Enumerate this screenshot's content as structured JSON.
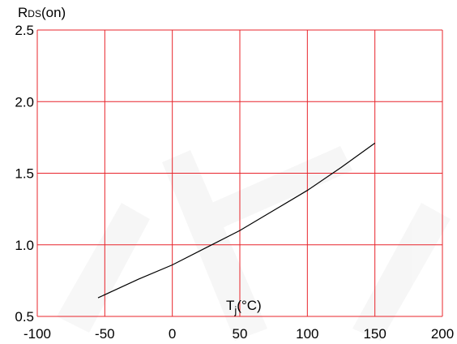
{
  "chart_data": {
    "type": "line",
    "title": "",
    "ylabel_main": "R",
    "ylabel_sub": "DS",
    "ylabel_suffix": "(on)",
    "xlabel_main": "T",
    "xlabel_sub": "j",
    "xlabel_suffix": "(°C)",
    "xlim": [
      -100,
      200
    ],
    "ylim": [
      0.5,
      2.5
    ],
    "xticks": [
      -100,
      -50,
      0,
      50,
      100,
      150,
      200
    ],
    "yticks": [
      0.5,
      1.0,
      1.5,
      2.0,
      2.5
    ],
    "ytick_labels": [
      "0.5",
      "1.0",
      "1.5",
      "2.0",
      "2.5"
    ],
    "grid": true,
    "grid_color": "#e8242b",
    "line_color": "#000000",
    "series": [
      {
        "x": [
          -55,
          -25,
          0,
          25,
          50,
          75,
          100,
          125,
          150
        ],
        "y": [
          0.63,
          0.76,
          0.86,
          0.98,
          1.1,
          1.24,
          1.38,
          1.54,
          1.71
        ]
      }
    ]
  }
}
